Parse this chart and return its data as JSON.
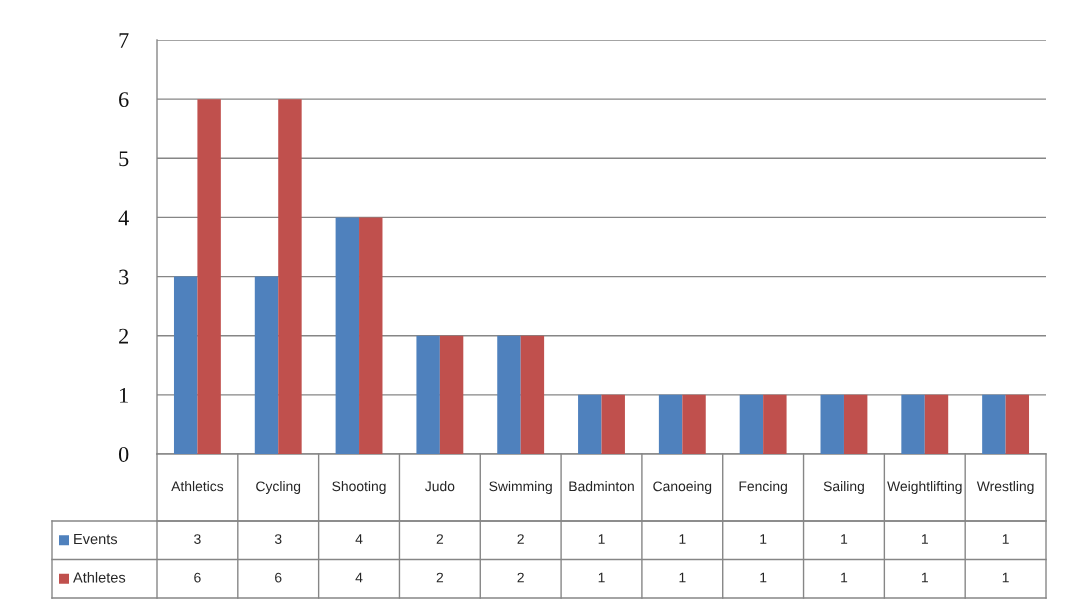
{
  "chart_data": {
    "type": "bar",
    "categories": [
      "Athletics",
      "Cycling",
      "Shooting",
      "Judo",
      "Swimming",
      "Badminton",
      "Canoeing",
      "Fencing",
      "Sailing",
      "Weightlifting",
      "Wrestling"
    ],
    "series": [
      {
        "name": "Events",
        "color": "#4f81bd",
        "values": [
          3,
          3,
          4,
          2,
          2,
          1,
          1,
          1,
          1,
          1,
          1
        ]
      },
      {
        "name": "Athletes",
        "color": "#c0504d",
        "values": [
          6,
          6,
          4,
          2,
          2,
          1,
          1,
          1,
          1,
          1,
          1
        ]
      }
    ],
    "ylim": [
      0,
      7
    ],
    "yticks": [
      0,
      1,
      2,
      3,
      4,
      5,
      6,
      7
    ],
    "grid": "y",
    "legend": "bottom left",
    "data_labels": true
  }
}
